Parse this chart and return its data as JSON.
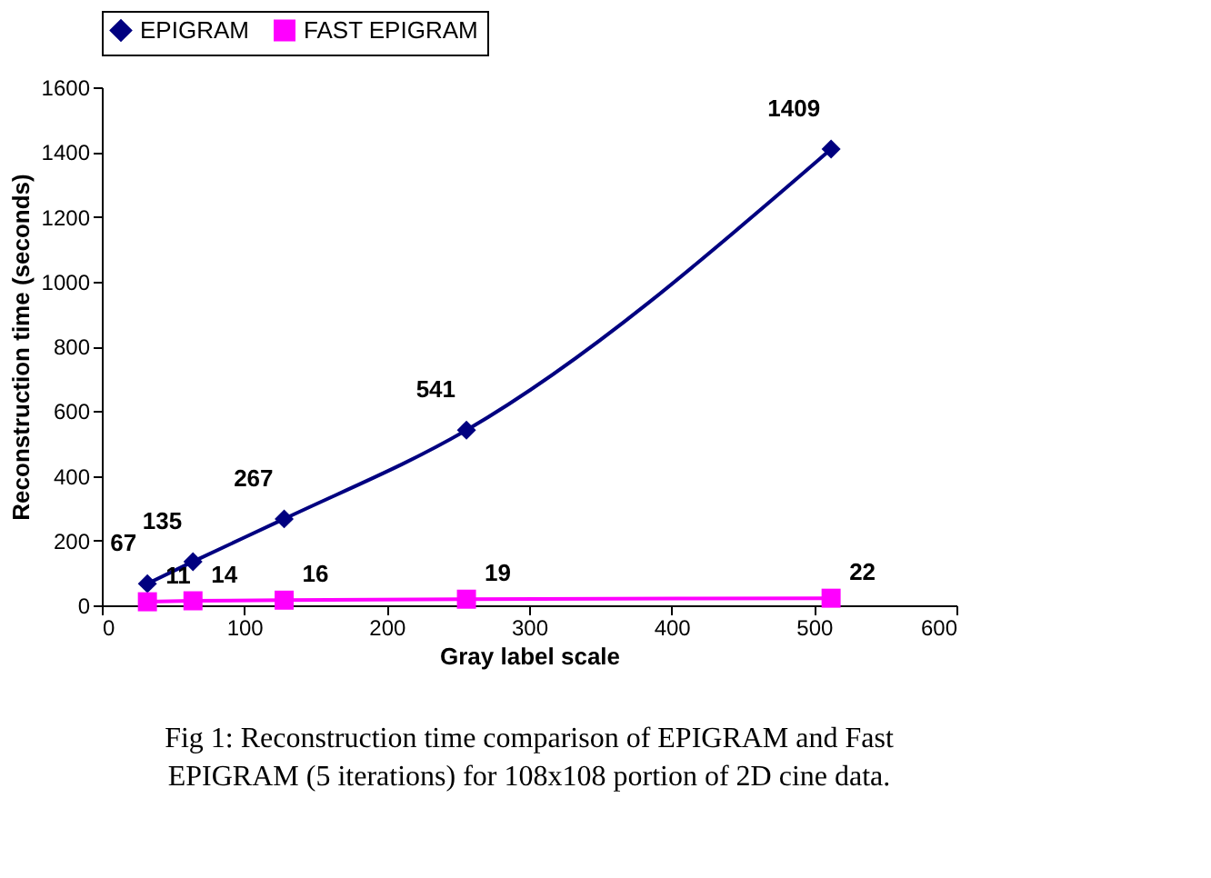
{
  "chart_data": {
    "type": "line",
    "xlabel": "Gray label scale",
    "ylabel": "Reconstruction time (seconds)",
    "x": [
      32,
      64,
      128,
      256,
      512
    ],
    "series": [
      {
        "name": "EPIGRAM",
        "color": "#000080",
        "marker": "diamond",
        "values": [
          67,
          135,
          267,
          541,
          1409
        ]
      },
      {
        "name": "FAST EPIGRAM",
        "color": "#ff00ff",
        "marker": "square",
        "values": [
          11,
          14,
          16,
          19,
          22
        ]
      }
    ],
    "xlim": [
      0,
      600
    ],
    "xticks": [
      0,
      100,
      200,
      300,
      400,
      500,
      600
    ],
    "ylim": [
      0,
      1600
    ],
    "yticks": [
      0,
      200,
      400,
      600,
      800,
      1000,
      1200,
      1400,
      1600
    ],
    "grid": false,
    "legend": "top",
    "data_labels": true,
    "annotations": [
      "Fig 1: Reconstruction time comparison of EPIGRAM and Fast EPIGRAM (5 iterations) for 108x108 portion of 2D cine data."
    ]
  }
}
